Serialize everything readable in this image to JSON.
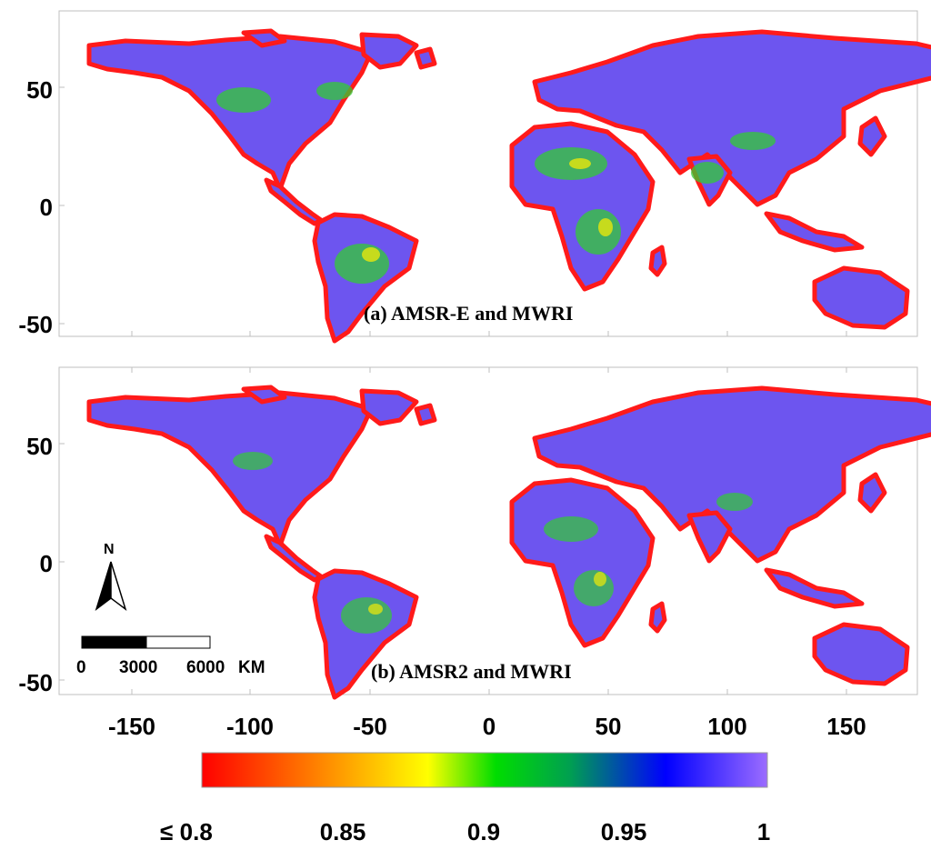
{
  "panels": [
    {
      "title": "(a)  AMSR-E and MWRI"
    },
    {
      "title": "(b)  AMSR2 and MWRI"
    }
  ],
  "y_ticks": [
    "50",
    "0",
    "-50"
  ],
  "x_ticks": [
    "-150",
    "-100",
    "-50",
    "0",
    "50",
    "100",
    "150"
  ],
  "north_arrow": {
    "label": "N",
    "icon": "north-arrow-icon"
  },
  "scale_bar": {
    "labels": [
      "0",
      "3000",
      "6000"
    ],
    "unit": "KM"
  },
  "colorbar": {
    "range": [
      0.8,
      1.0
    ],
    "tick_labels": [
      "≤ 0.8",
      "0.85",
      "0.9",
      "0.95",
      "1"
    ],
    "colors": [
      "#ff0000",
      "#ff8c00",
      "#ffff00",
      "#00dd00",
      "#00a050",
      "#0000ff",
      "#9b6cff"
    ]
  },
  "colors": {
    "land_fill": "#6d55ef",
    "coast_outline": "#ff1a1a",
    "green_patch": "#33cc33",
    "frame": "#bfbfbf"
  }
}
